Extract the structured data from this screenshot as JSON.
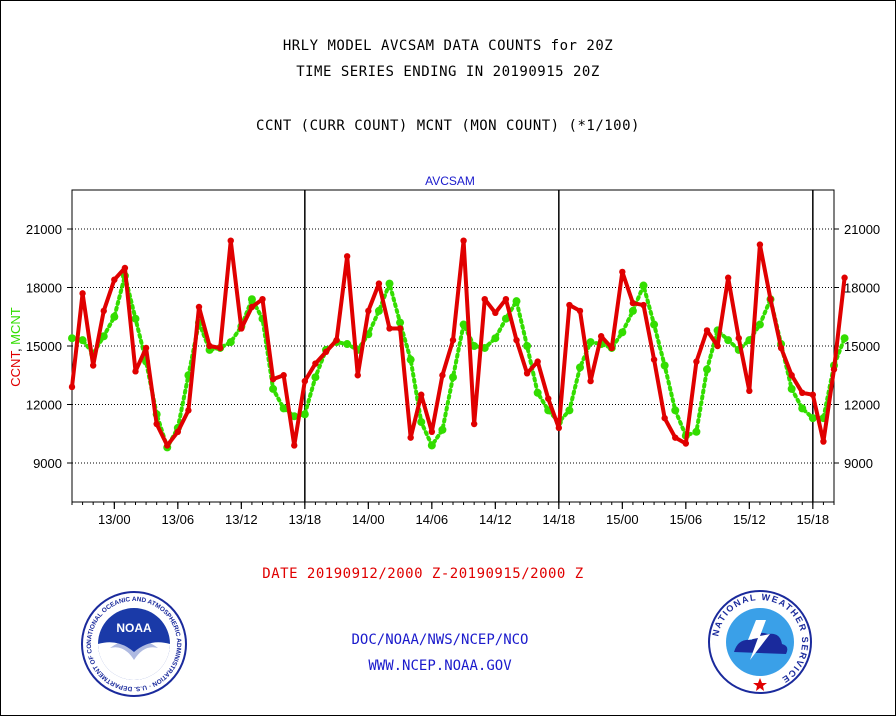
{
  "titles": {
    "line1": "HRLY MODEL AVCSAM DATA COUNTS for 20Z",
    "line2": "TIME SERIES ENDING IN 20190915 20Z",
    "line3": "CCNT (CURR COUNT) MCNT (MON COUNT) (*1/100)"
  },
  "footer": {
    "date_range": "DATE 20190912/2000 Z-20190915/2000 Z",
    "org": "DOC/NOAA/NWS/NCEP/NCO",
    "url": "WWW.NCEP.NOAA.GOV"
  },
  "logos": {
    "noaa": {
      "text": "NOAA",
      "ring_text": "NATIONAL OCEANIC AND ATMOSPHERIC ADMINISTRATION · U.S. DEPARTMENT OF COMMERCE"
    },
    "nws": {
      "ring_text": "NATIONAL WEATHER SERVICE"
    }
  },
  "chart_data": {
    "type": "line",
    "title": "AVCSAM",
    "ylabel_parts": [
      "CCNT",
      "MCNT"
    ],
    "ylim": [
      7000,
      23000
    ],
    "yticks": [
      9000,
      12000,
      15000,
      18000,
      21000
    ],
    "ytick_labels": [
      "9000",
      "12000",
      "15000",
      "18000",
      "21000"
    ],
    "x_hour_range": [
      0,
      72
    ],
    "xticks_hour": [
      4,
      10,
      16,
      22,
      28,
      34,
      40,
      46,
      52,
      58,
      64,
      70
    ],
    "xtick_labels": [
      "13/00",
      "13/06",
      "13/12",
      "13/18",
      "14/00",
      "14/06",
      "14/12",
      "14/18",
      "15/00",
      "15/06",
      "15/12",
      "15/18"
    ],
    "day_dividers_hour": [
      22,
      46,
      70
    ],
    "grid": true,
    "colors": {
      "ccnt": "#e00000",
      "mcnt": "#33dd00",
      "title": "#1a1acc"
    },
    "series": [
      {
        "name": "CCNT",
        "style": "solid",
        "values": [
          12900,
          17700,
          14000,
          16800,
          18400,
          19000,
          13700,
          14900,
          11000,
          9900,
          10600,
          11700,
          17000,
          15000,
          14900,
          20400,
          15900,
          17000,
          17400,
          13300,
          13500,
          9900,
          13200,
          14100,
          14700,
          15300,
          19600,
          13500,
          16800,
          18200,
          15900,
          15900,
          10300,
          12500,
          10600,
          13500,
          15300,
          20400,
          11000,
          17400,
          16700,
          17400,
          15300,
          13600,
          14200,
          12300,
          10800,
          17100,
          16800,
          13200,
          15500,
          14900,
          18800,
          17200,
          17100,
          14300,
          11300,
          10300,
          10000,
          14200,
          15800,
          15000,
          18500,
          15400,
          12700,
          20200,
          17400,
          14900,
          13500,
          12600,
          12500,
          10100,
          13800,
          18500
        ]
      },
      {
        "name": "MCNT",
        "style": "dotted",
        "values": [
          15400,
          15300,
          14600,
          15500,
          16500,
          18600,
          16400,
          14200,
          11500,
          9800,
          10800,
          13500,
          16200,
          14800,
          14900,
          15200,
          16000,
          17400,
          16400,
          12800,
          11800,
          11400,
          11500,
          13400,
          14800,
          15200,
          15100,
          14800,
          15600,
          16800,
          18200,
          16200,
          14300,
          11100,
          9900,
          10700,
          13400,
          16100,
          15000,
          14900,
          15400,
          16400,
          17300,
          15000,
          12600,
          11700,
          11100,
          11700,
          13900,
          15200,
          15100,
          14900,
          15700,
          16800,
          18100,
          16100,
          14000,
          11700,
          10400,
          10600,
          13800,
          15800,
          15300,
          14800,
          15300,
          16100,
          17400,
          15100,
          12800,
          11800,
          11300,
          11300,
          14000,
          15400
        ]
      }
    ]
  }
}
